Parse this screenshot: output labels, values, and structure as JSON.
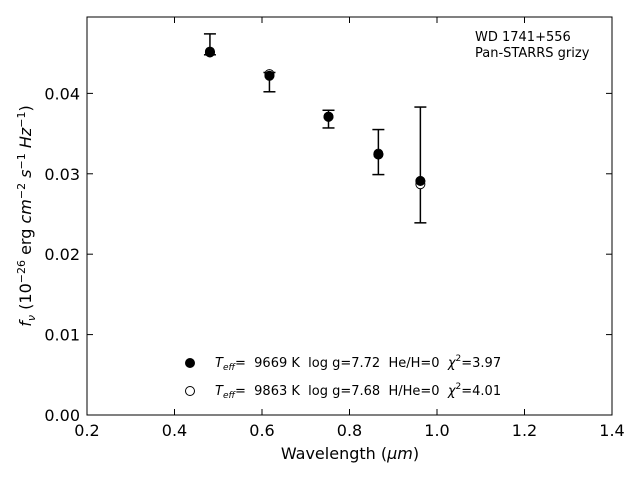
{
  "chart_data": {
    "type": "scatter",
    "title": "",
    "xlabel_main": "Wavelength (",
    "xlabel_unit": "μm",
    "xlabel_end": ")",
    "ylabel_symbol": "f",
    "ylabel_sub": "ν",
    "ylabel_rest": "(10",
    "ylabel_exp": "−26",
    "ylabel_mid": "erg",
    "ylabel_cm": "cm",
    "ylabel_cm_exp": "−2",
    "ylabel_s": "s",
    "ylabel_s_exp": "−1",
    "ylabel_hz": "Hz",
    "ylabel_hz_exp": "−1",
    "ylabel_close": ")",
    "xlim": [
      0.2,
      1.4
    ],
    "ylim": [
      0.0,
      0.0495
    ],
    "xticks": [
      "0.2",
      "0.4",
      "0.6",
      "0.8",
      "1.0",
      "1.2",
      "1.4"
    ],
    "yticks": [
      "0.00",
      "0.01",
      "0.02",
      "0.03",
      "0.04"
    ],
    "grid": false,
    "annotations": [
      "WD 1741+556",
      "Pan-STARRS grizy"
    ],
    "observed": {
      "x": [
        0.481,
        0.617,
        0.752,
        0.866,
        0.962
      ],
      "y": [
        0.0461,
        0.0414,
        0.0368,
        0.0327,
        0.0311
      ],
      "err": [
        0.0013,
        0.0012,
        0.0011,
        0.0028,
        0.0072
      ]
    },
    "series": [
      {
        "name": "Teff= 9669 K log g=7.72 He/H=0 χ2=3.97",
        "marker": "filled-circle",
        "x": [
          0.481,
          0.617,
          0.752,
          0.866,
          0.962
        ],
        "y": [
          0.0451,
          0.0422,
          0.0371,
          0.0324,
          0.0291
        ]
      },
      {
        "name": "Teff= 9863 K log g=7.68 H/He=0 χ2=4.01",
        "marker": "open-circle",
        "x": [
          0.481,
          0.617,
          0.752,
          0.866,
          0.962
        ],
        "y": [
          0.0452,
          0.0424,
          0.0371,
          0.0325,
          0.0287
        ]
      }
    ],
    "legend": [
      {
        "T": "T",
        "Tsub": "eff",
        "mid": "=  9669 K  log g=7.72  He/H=0  ",
        "chi": "χ",
        "chiexp": "2",
        "end": "=3.97"
      },
      {
        "T": "T",
        "Tsub": "eff",
        "mid": "=  9863 K  log g=7.68  H/He=0  ",
        "chi": "χ",
        "chiexp": "2",
        "end": "=4.01"
      }
    ],
    "legend_position": "lower-center"
  }
}
